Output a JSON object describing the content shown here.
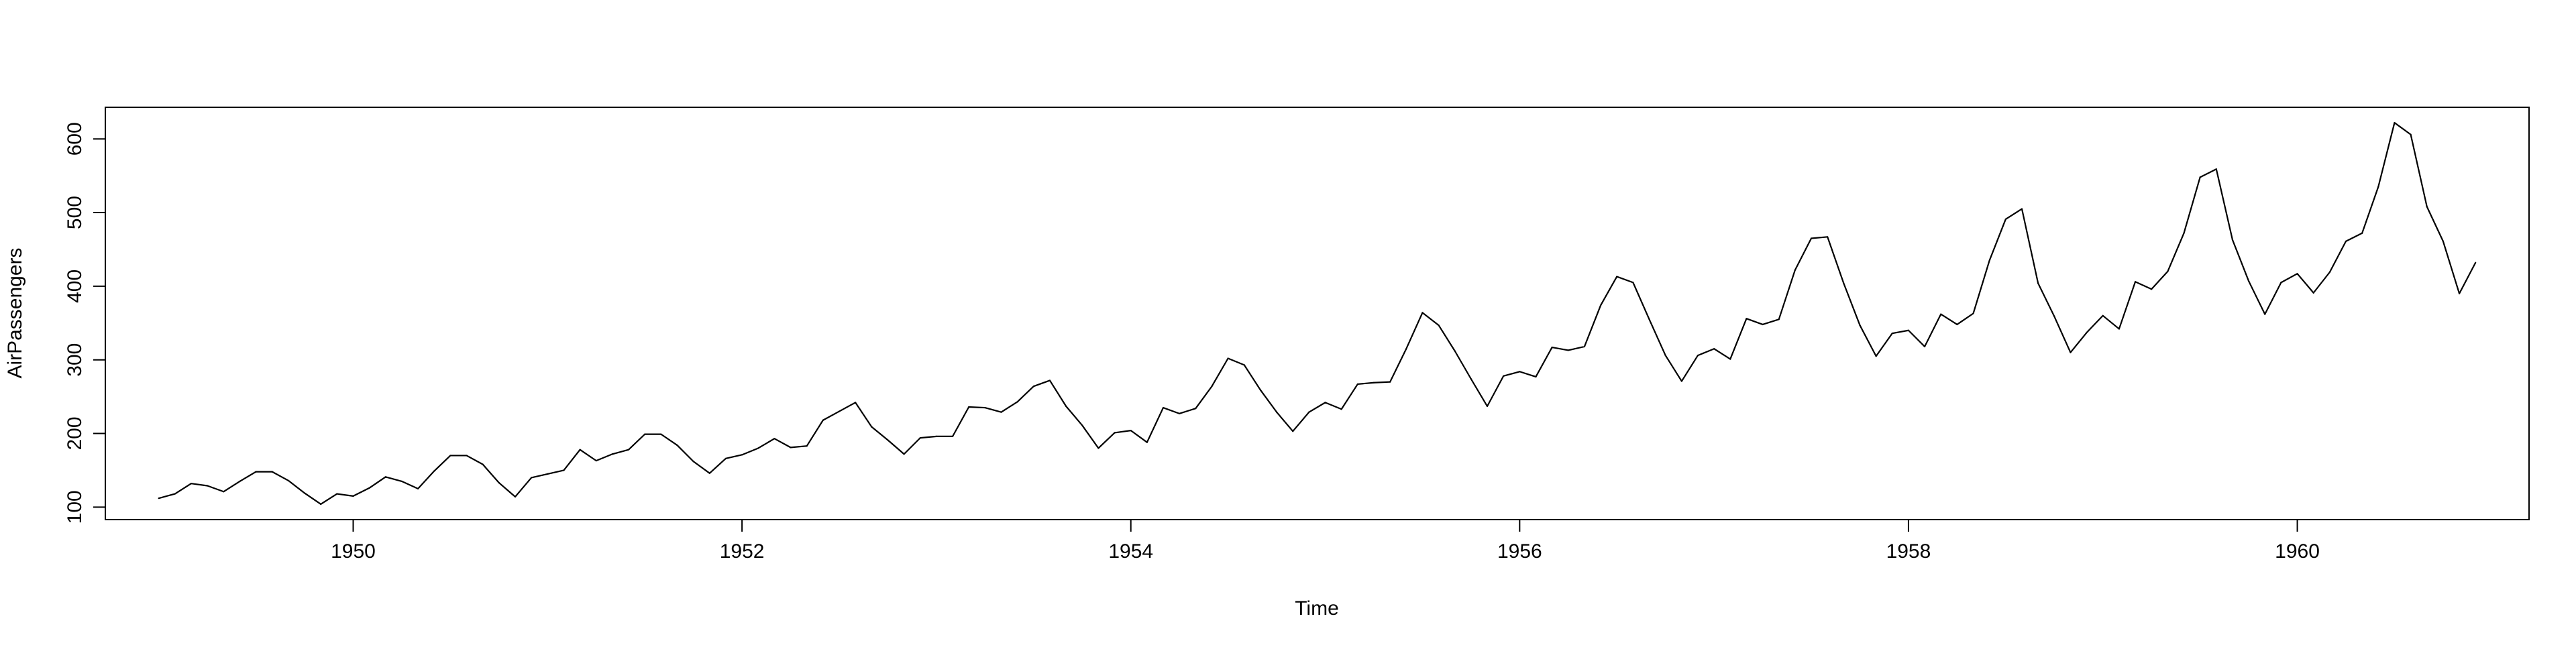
{
  "chart_data": {
    "type": "line",
    "title": "",
    "xlabel": "Time",
    "ylabel": "AirPassengers",
    "xlim": [
      1948.725,
      1961.192
    ],
    "ylim": [
      83.0,
      643.0
    ],
    "x_ticks": [
      1950,
      1952,
      1954,
      1956,
      1958,
      1960
    ],
    "x_tick_labels": [
      "1950",
      "1952",
      "1954",
      "1956",
      "1958",
      "1960"
    ],
    "y_ticks": [
      100,
      200,
      300,
      400,
      500,
      600
    ],
    "y_tick_labels": [
      "100",
      "200",
      "300",
      "400",
      "500",
      "600"
    ],
    "grid": false,
    "line_color": "#000000",
    "series": [
      {
        "start": 1949,
        "frequency": 12,
        "values": [
          112,
          118,
          132,
          129,
          121,
          135,
          148,
          148,
          136,
          119,
          104,
          118,
          115,
          126,
          141,
          135,
          125,
          149,
          170,
          170,
          158,
          133,
          114,
          140,
          145,
          150,
          178,
          163,
          172,
          178,
          199,
          199,
          184,
          162,
          146,
          166,
          171,
          180,
          193,
          181,
          183,
          218,
          230,
          242,
          209,
          191,
          172,
          194,
          196,
          196,
          236,
          235,
          229,
          243,
          264,
          272,
          237,
          211,
          180,
          201,
          204,
          188,
          235,
          227,
          234,
          264,
          302,
          293,
          259,
          229,
          203,
          229,
          242,
          233,
          267,
          269,
          270,
          315,
          364,
          347,
          312,
          274,
          237,
          278,
          284,
          277,
          317,
          313,
          318,
          374,
          413,
          405,
          355,
          306,
          271,
          306,
          315,
          301,
          356,
          348,
          355,
          422,
          465,
          467,
          404,
          347,
          305,
          336,
          340,
          318,
          362,
          348,
          363,
          435,
          491,
          505,
          404,
          359,
          310,
          337,
          360,
          342,
          406,
          396,
          420,
          472,
          548,
          559,
          463,
          407,
          362,
          405,
          417,
          391,
          419,
          461,
          472,
          535,
          622,
          606,
          508,
          461,
          390,
          432
        ]
      }
    ]
  }
}
